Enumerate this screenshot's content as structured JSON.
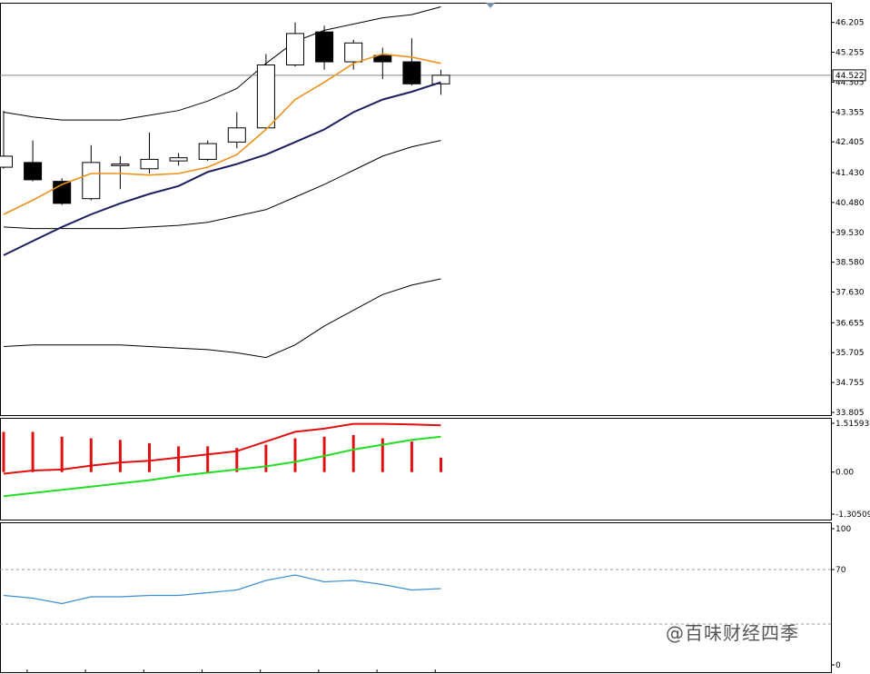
{
  "colors": {
    "background": "#ffffff",
    "frame": "#000000",
    "bull_body": "#ffffff",
    "bear_body": "#000000",
    "ma_fast": "#f0901a",
    "ma_slow": "#1a1f5e",
    "bands": "#000000",
    "macd_hist": "#e01010",
    "macd_signal_a": "#e01010",
    "macd_signal_b": "#22dd22",
    "rsi": "#3a8fd8",
    "current_price_line": "#888888"
  },
  "watermark": "@百味财经四季",
  "chart_data": [
    {
      "type": "candlestick",
      "panel": "price",
      "ylim": [
        33.805,
        46.8
      ],
      "y_ticks": [
        "46.205",
        "45.255",
        "44.305",
        "43.355",
        "42.405",
        "41.430",
        "40.480",
        "39.530",
        "38.580",
        "37.630",
        "36.655",
        "35.705",
        "34.755",
        "33.805"
      ],
      "current_price": "44.522",
      "current_price_value": 44.522,
      "candles": [
        {
          "o": 41.6,
          "h": 43.4,
          "l": 41.55,
          "c": 41.95
        },
        {
          "o": 41.75,
          "h": 42.45,
          "l": 41.15,
          "c": 41.2
        },
        {
          "o": 41.15,
          "h": 41.25,
          "l": 40.4,
          "c": 40.45
        },
        {
          "o": 40.6,
          "h": 42.3,
          "l": 40.55,
          "c": 41.75
        },
        {
          "o": 41.65,
          "h": 41.95,
          "l": 40.9,
          "c": 41.7
        },
        {
          "o": 41.55,
          "h": 42.7,
          "l": 41.4,
          "c": 41.85
        },
        {
          "o": 41.8,
          "h": 42.05,
          "l": 41.65,
          "c": 41.9
        },
        {
          "o": 41.85,
          "h": 42.45,
          "l": 41.8,
          "c": 42.35
        },
        {
          "o": 42.4,
          "h": 43.35,
          "l": 42.2,
          "c": 42.85
        },
        {
          "o": 42.85,
          "h": 45.2,
          "l": 42.8,
          "c": 44.85
        },
        {
          "o": 44.85,
          "h": 46.2,
          "l": 44.8,
          "c": 45.85
        },
        {
          "o": 45.9,
          "h": 46.1,
          "l": 44.7,
          "c": 44.95
        },
        {
          "o": 44.95,
          "h": 45.65,
          "l": 44.7,
          "c": 45.55
        },
        {
          "o": 45.15,
          "h": 45.4,
          "l": 44.4,
          "c": 44.95
        },
        {
          "o": 44.95,
          "h": 45.7,
          "l": 44.2,
          "c": 44.25
        },
        {
          "o": 44.25,
          "h": 44.7,
          "l": 43.9,
          "c": 44.522
        }
      ],
      "ma_fast": [
        40.1,
        40.55,
        41.05,
        41.4,
        41.4,
        41.35,
        41.4,
        41.6,
        42.0,
        42.8,
        43.75,
        44.3,
        44.9,
        45.2,
        45.1,
        44.9
      ],
      "ma_slow": [
        38.8,
        39.25,
        39.7,
        40.1,
        40.45,
        40.75,
        41.0,
        41.45,
        41.7,
        42.0,
        42.4,
        42.8,
        43.35,
        43.75,
        44.0,
        44.3
      ],
      "band_upper_inner": [
        43.35,
        43.2,
        43.1,
        43.1,
        43.1,
        43.25,
        43.4,
        43.7,
        44.1,
        44.9,
        45.6,
        45.95,
        46.15,
        46.35,
        46.45,
        46.7
      ],
      "band_lower_inner": [
        39.7,
        39.65,
        39.65,
        39.65,
        39.65,
        39.7,
        39.75,
        39.85,
        40.05,
        40.25,
        40.65,
        41.05,
        41.5,
        41.95,
        42.25,
        42.45
      ],
      "band_lower_outer": [
        35.9,
        35.95,
        35.95,
        35.95,
        35.95,
        35.9,
        35.85,
        35.8,
        35.7,
        35.55,
        35.95,
        36.55,
        37.05,
        37.55,
        37.85,
        38.05
      ]
    },
    {
      "type": "macd",
      "panel": "oscillator",
      "ylim": [
        -1.30509,
        1.51593
      ],
      "y_ticks": [
        "1.51593",
        "0.00",
        "-1.30509"
      ],
      "histogram": [
        1.25,
        1.25,
        1.1,
        1.05,
        1.0,
        0.9,
        0.8,
        0.8,
        0.75,
        0.85,
        1.05,
        1.1,
        1.15,
        1.05,
        0.95,
        0.45
      ],
      "line_red": [
        -0.05,
        0.05,
        0.08,
        0.2,
        0.3,
        0.35,
        0.45,
        0.55,
        0.65,
        0.95,
        1.25,
        1.35,
        1.5,
        1.5,
        1.48,
        1.45
      ],
      "line_green": [
        -0.75,
        -0.65,
        -0.55,
        -0.45,
        -0.35,
        -0.25,
        -0.12,
        -0.02,
        0.08,
        0.18,
        0.32,
        0.5,
        0.7,
        0.85,
        1.0,
        1.1
      ]
    },
    {
      "type": "line",
      "panel": "rsi",
      "ylim": [
        0,
        100
      ],
      "y_ticks": [
        "100",
        "70",
        "0"
      ],
      "levels": [
        70,
        30
      ],
      "values": [
        51,
        49,
        45,
        50,
        50,
        51,
        51,
        53,
        55,
        62,
        66,
        61,
        62,
        59,
        55,
        56
      ]
    }
  ]
}
